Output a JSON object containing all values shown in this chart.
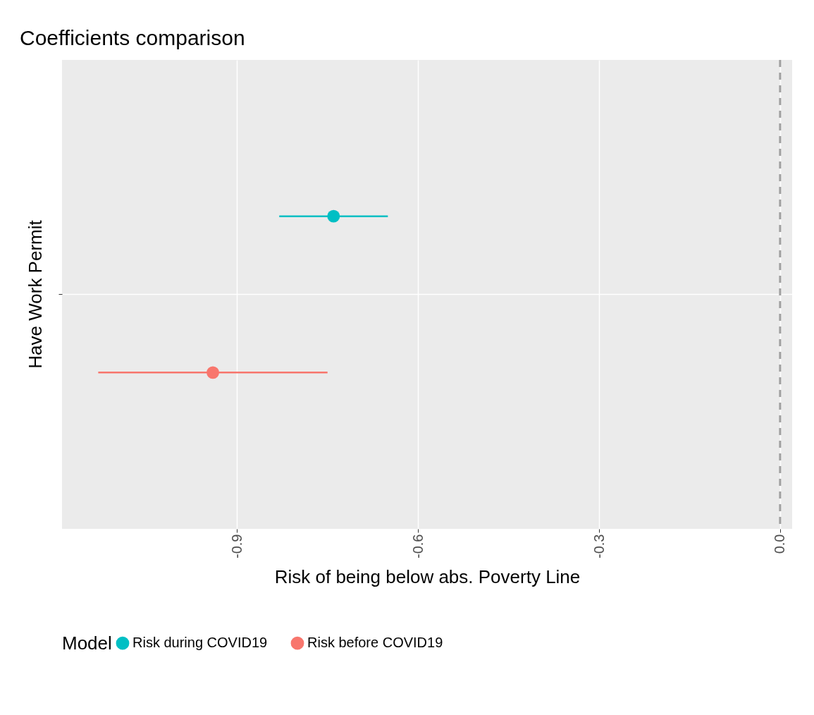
{
  "chart_data": {
    "type": "scatter",
    "orientation": "horizontal",
    "title": "Coefficients comparison",
    "xlabel": "Risk of being below abs. Poverty Line",
    "legend_title": "Model",
    "categories": [
      "Have Work Permit"
    ],
    "series": [
      {
        "name": "Risk during COVID19",
        "color": "#00bfc4",
        "values": [
          -0.74
        ],
        "errors": [
          [
            -0.83,
            -0.65
          ]
        ]
      },
      {
        "name": "Risk before COVID19",
        "color": "#f8766d",
        "values": [
          -0.94
        ],
        "errors": [
          [
            -1.13,
            -0.75
          ]
        ]
      }
    ],
    "xlim": [
      -1.19,
      0.02
    ],
    "xticks": [
      -0.9,
      -0.6,
      -0.3,
      {
        "value": 0,
        "label": "0.0"
      }
    ],
    "grid": true,
    "legend": "bottom",
    "marker": "circle",
    "ref_lines": [
      {
        "axis": "x",
        "value": 0,
        "line_style": "dashed",
        "color": "#a0a0a0"
      }
    ]
  }
}
